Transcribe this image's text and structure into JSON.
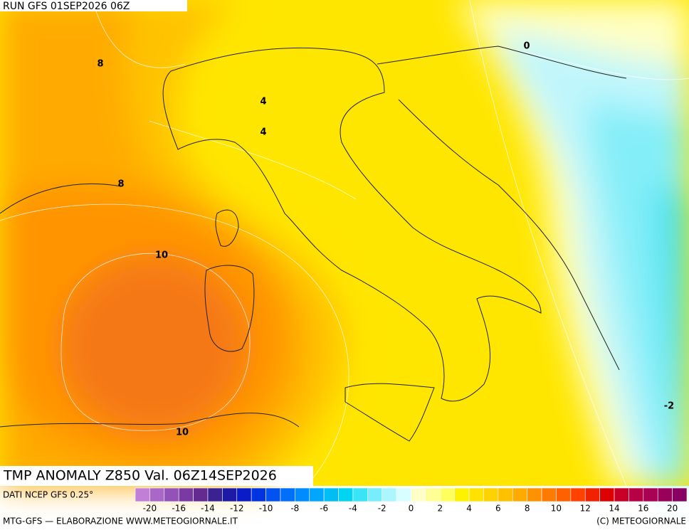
{
  "header": {
    "run": "RUN GFS 01SEP2026 06Z"
  },
  "contour_labels": [
    "8",
    "4",
    "4",
    "8",
    "10",
    "10",
    "0",
    "-2"
  ],
  "title": "TMP ANOMALY Z850 Val. 06Z14SEP2026",
  "source": "DATI NCEP GFS 0.25°",
  "legend": {
    "ticks": [
      "-20",
      "-16",
      "-14",
      "-12",
      "-10",
      "-8",
      "-6",
      "-4",
      "-2",
      "0",
      "2",
      "4",
      "6",
      "8",
      "10",
      "12",
      "14",
      "16",
      "20"
    ],
    "colors": [
      "#c27fd8",
      "#a968c8",
      "#9252b8",
      "#7a3aa4",
      "#642a92",
      "#3a2292",
      "#1e1aa8",
      "#0a1cc8",
      "#0034e0",
      "#0052f0",
      "#0070fa",
      "#008cff",
      "#00a6ff",
      "#00bef4",
      "#00d4f0",
      "#38e4f6",
      "#78eefc",
      "#acf6ff",
      "#d8ffff",
      "#ffffc8",
      "#ffff96",
      "#ffff60",
      "#fff200",
      "#ffe200",
      "#ffd200",
      "#ffc000",
      "#ffaa00",
      "#ff9200",
      "#ff7a00",
      "#ff6000",
      "#ff4200",
      "#f02200",
      "#dc0000",
      "#c80028",
      "#b80044",
      "#a80052",
      "#98005a",
      "#880062"
    ]
  },
  "footer": {
    "left": "MTG-GFS — ELABORAZIONE WWW.METEOGIORNALE.IT",
    "right": "(C) METEOGIORNALE"
  }
}
